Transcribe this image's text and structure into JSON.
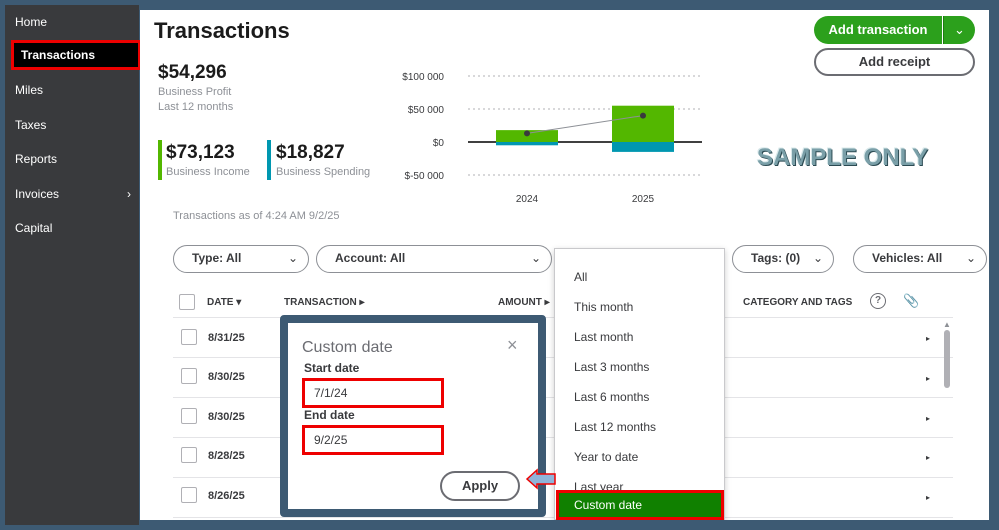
{
  "sidebar": {
    "items": [
      {
        "label": "Home"
      },
      {
        "label": "Transactions"
      },
      {
        "label": "Miles"
      },
      {
        "label": "Taxes"
      },
      {
        "label": "Reports"
      },
      {
        "label": "Invoices"
      },
      {
        "label": "Capital"
      }
    ],
    "invoices_chevron": "›"
  },
  "header": {
    "title": "Transactions",
    "add_transaction_label": "Add transaction",
    "add_transaction_dropdown": "⌄",
    "add_receipt_label": "Add receipt"
  },
  "summary": {
    "profit_value": "$54,296",
    "profit_label": "Business Profit",
    "period_label": "Last 12 months",
    "income_value": "$73,123",
    "income_label": "Business Income",
    "spending_value": "$18,827",
    "spending_label": "Business Spending"
  },
  "chart_data": {
    "type": "bar",
    "categories": [
      "2024",
      "2025"
    ],
    "series": [
      {
        "name": "Business Income",
        "values": [
          18000,
          55000
        ],
        "color": "#53b700"
      },
      {
        "name": "Business Spending",
        "values": [
          -5000,
          -15000
        ],
        "color": "#0097b0"
      },
      {
        "name": "Business Profit",
        "values": [
          13000,
          40000
        ],
        "color": "#6b6c72",
        "kind": "line"
      }
    ],
    "y_ticks": [
      "$100 000",
      "$50 000",
      "$0",
      "$-50 000"
    ],
    "ylim": [
      -50000,
      100000
    ],
    "grid": true
  },
  "watermark": "SAMPLE ONLY",
  "as_of": "Transactions as of 4:24 AM 9/2/25",
  "filters": {
    "type": "Type: All",
    "account": "Account: All",
    "tags": "Tags: (0)",
    "vehicles": "Vehicles: All",
    "chevron": "⌄"
  },
  "table": {
    "headers": {
      "date": "DATE ▾",
      "transaction": "TRANSACTION ▸",
      "amount": "AMOUNT ▸",
      "category": "CATEGORY AND TAGS"
    },
    "help_icon": "?",
    "attach_icon": "📎",
    "rows": [
      {
        "date": "8/31/25"
      },
      {
        "date": "8/30/25"
      },
      {
        "date": "8/30/25"
      },
      {
        "date": "8/28/25"
      },
      {
        "date": "8/26/25"
      }
    ],
    "row_arrow": "▸",
    "scroll_up": "▲"
  },
  "date_menu": {
    "items": [
      {
        "label": "All"
      },
      {
        "label": "This month"
      },
      {
        "label": "Last month"
      },
      {
        "label": "Last 3 months"
      },
      {
        "label": "Last 6 months"
      },
      {
        "label": "Last 12 months"
      },
      {
        "label": "Year to date"
      },
      {
        "label": "Last year"
      },
      {
        "label": "Custom date"
      }
    ],
    "selected": "Custom date"
  },
  "custom_date": {
    "title": "Custom date",
    "close": "×",
    "start_label": "Start date",
    "start_value": "7/1/24",
    "end_label": "End date",
    "end_value": "9/2/25",
    "apply_label": "Apply"
  }
}
